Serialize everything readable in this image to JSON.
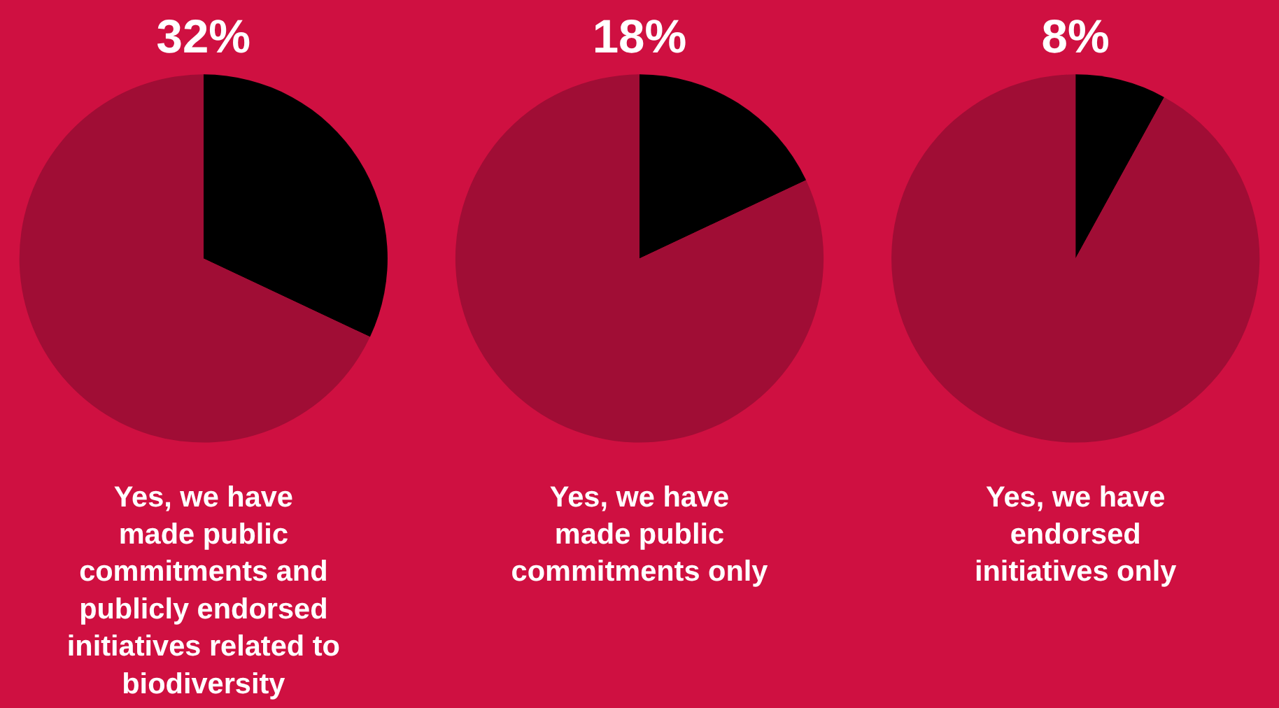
{
  "chart_data": [
    {
      "type": "pie",
      "xlabel": "Yes, we have\nmade public\ncommitments and\npublicly endorsed\ninitiatives related to\nbiodiversity",
      "categories": [
        null,
        null
      ],
      "values": [
        32,
        68
      ],
      "colors": [
        "#000000",
        "#a00d35"
      ],
      "value_labels": [
        "32%",
        null
      ]
    },
    {
      "type": "pie",
      "xlabel": "Yes, we have\nmade public\ncommitments only",
      "categories": [
        null,
        null
      ],
      "values": [
        18,
        82
      ],
      "colors": [
        "#000000",
        "#a00d35"
      ],
      "value_labels": [
        "18%",
        null
      ]
    },
    {
      "type": "pie",
      "xlabel": "Yes, we have\nendorsed\ninitiatives only",
      "categories": [
        null,
        null
      ],
      "values": [
        8,
        92
      ],
      "colors": [
        "#000000",
        "#a00d35"
      ],
      "value_labels": [
        "8%",
        null
      ]
    }
  ]
}
